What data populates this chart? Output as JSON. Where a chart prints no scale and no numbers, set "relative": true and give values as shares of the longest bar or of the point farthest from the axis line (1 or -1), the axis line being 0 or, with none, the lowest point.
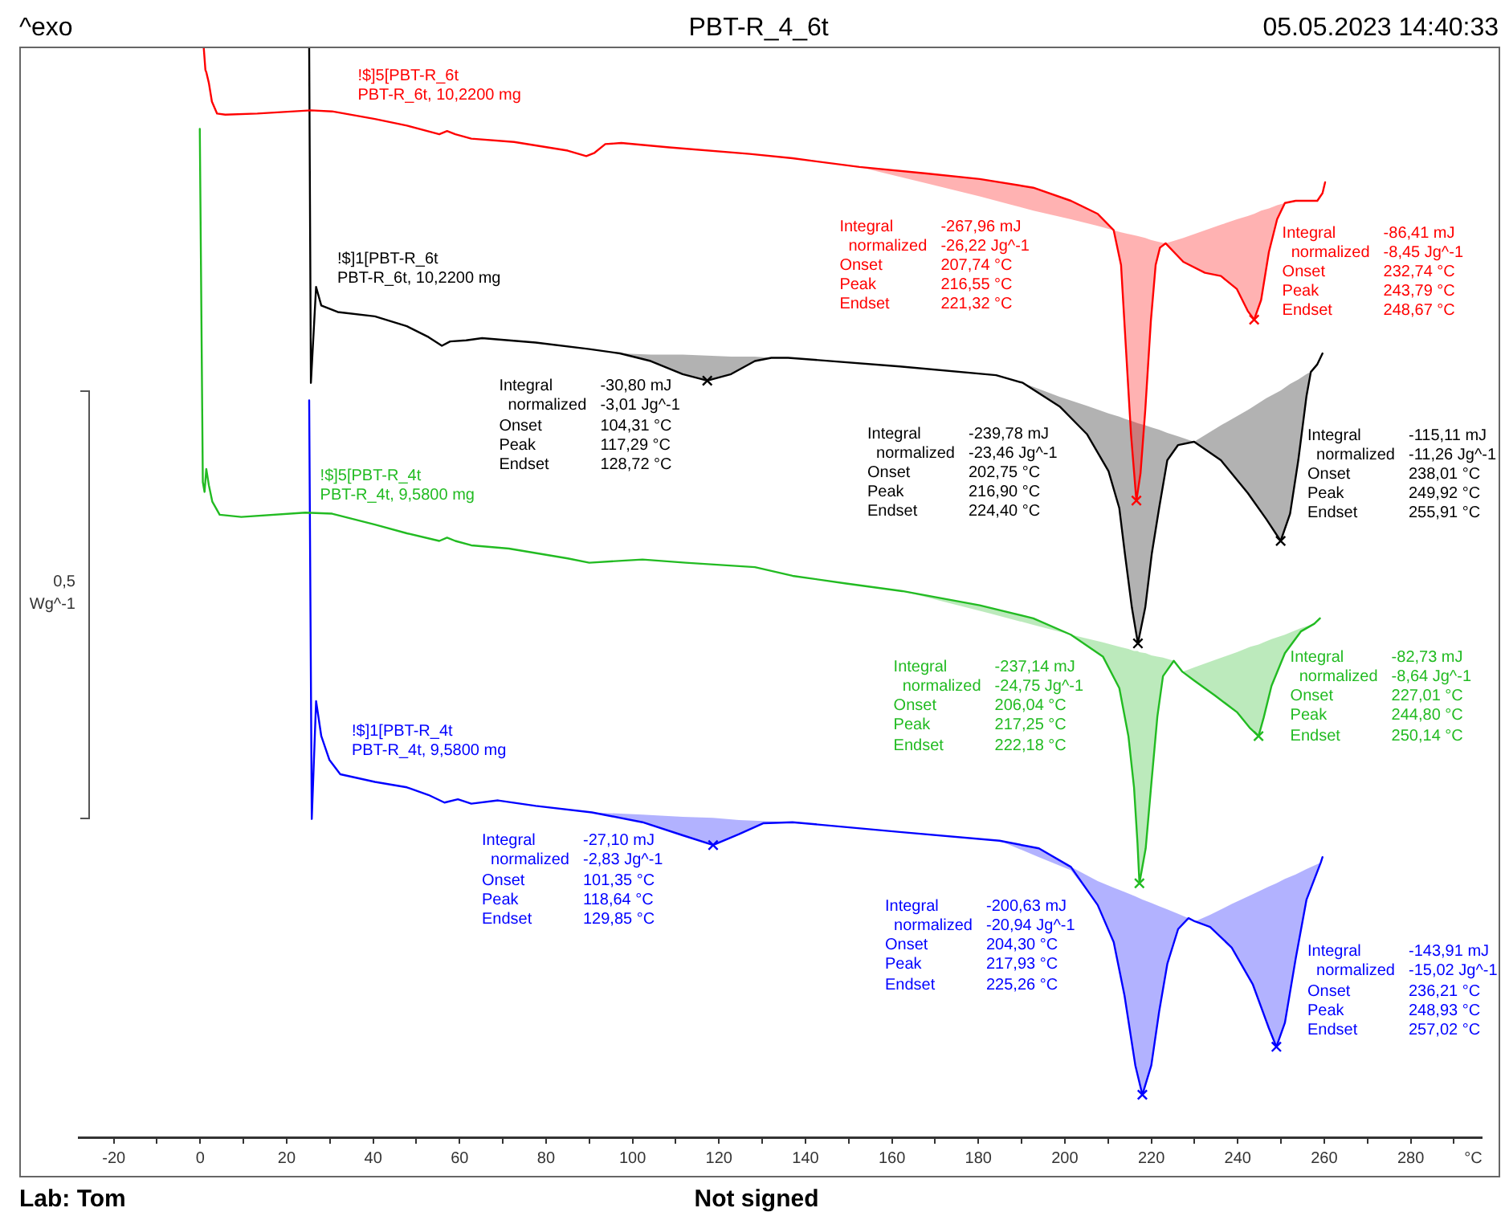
{
  "chart_data": {
    "type": "line",
    "title": "PBT-R_4_6t",
    "xlabel": "°C",
    "ylabel": "0,5\nWg^-1",
    "relative": true,
    "xlim": [
      -28,
      296.5
    ],
    "xticks": [
      -20,
      {
        "value": -10,
        "label": null
      },
      0,
      {
        "value": 10,
        "label": null
      },
      20,
      {
        "value": 30,
        "label": null
      },
      40,
      {
        "value": 50,
        "label": null
      },
      60,
      {
        "value": 70,
        "label": null
      },
      80,
      {
        "value": 90,
        "label": null
      },
      100,
      {
        "value": 110,
        "label": null
      },
      120,
      {
        "value": 130,
        "label": null
      },
      140,
      {
        "value": 150,
        "label": null
      },
      160,
      {
        "value": 170,
        "label": null
      },
      180,
      {
        "value": 190,
        "label": null
      },
      200,
      {
        "value": 210,
        "label": null
      },
      220,
      {
        "value": 230,
        "label": null
      },
      240,
      {
        "value": 250,
        "label": null
      },
      260,
      {
        "value": 270,
        "label": null
      },
      280,
      {
        "value": 290,
        "label": null
      }
    ],
    "annotations": [
      "^exo",
      "05.05.2023 14:40:33",
      "Lab: Tom",
      "Not signed",
      "Integral\t-30,80 mJ\n  normalized\t-3,01 Jg^-1\nOnset\t104,31 °C\nPeak\t117,29 °C\nEndset\t128,72 °C",
      "Integral\t-267,96 mJ\n  normalized\t-26,22 Jg^-1\nOnset\t207,74 °C\nPeak\t216,55 °C\nEndset\t221,32 °C",
      "Integral\t-86,41 mJ\n  normalized\t-8,45 Jg^-1\nOnset\t232,74 °C\nPeak\t243,79 °C\nEndset\t248,67 °C",
      "Integral\t-239,78 mJ\n  normalized\t-23,46 Jg^-1\nOnset\t202,75 °C\nPeak\t216,90 °C\nEndset\t224,40 °C",
      "Integral\t-115,11 mJ\n  normalized\t-11,26 Jg^-1\nOnset\t238,01 °C\nPeak\t249,92 °C\nEndset\t255,91 °C",
      "Integral\t-237,14 mJ\n  normalized\t-24,75 Jg^-1\nOnset\t206,04 °C\nPeak\t217,25 °C\nEndset\t222,18 °C",
      "Integral\t-82,73 mJ\n  normalized\t-8,64 Jg^-1\nOnset\t227,01 °C\nPeak\t244,80 °C\nEndset\t250,14 °C",
      "Integral\t-27,10 mJ\n  normalized\t-2,83 Jg^-1\nOnset\t101,35 °C\nPeak\t118,64 °C\nEndset\t129,85 °C",
      "Integral\t-200,63 mJ\n  normalized\t-20,94 Jg^-1\nOnset\t204,30 °C\nPeak\t217,93 °C\nEndset\t225,26 °C",
      "Integral\t-143,91 mJ\n  normalized\t-15,02 Jg^-1\nOnset\t236,21 °C\nPeak\t248,93 °C\nEndset\t257,02 °C"
    ],
    "series": [
      {
        "name": "!$]5[PBT-R_6t\nPBT-R_6t, 10,2200 mg",
        "color": "#ff0000",
        "x": [
          0.8,
          1.2,
          1.4,
          2.0,
          2.7,
          3.9,
          5.8,
          13.2,
          25.6,
          30.5,
          40.4,
          47.8,
          55.3,
          57.1,
          59.0,
          62.7,
          72.6,
          85.0,
          89.3,
          91.2,
          93.7,
          97.4,
          108.5,
          127.1,
          137.0,
          152.5,
          168.0,
          180.3,
          192.7,
          201.4,
          207.6,
          211.3,
          213.0,
          214.2,
          215.3,
          216.55,
          217.5,
          218.6,
          219.9,
          221.0,
          222.0,
          223.3,
          227.4,
          232.4,
          236.1,
          239.8,
          242.3,
          243.79,
          245.4,
          247.2,
          249.1,
          250.9,
          253.4,
          258.4,
          259.6,
          260.2
        ],
        "values": [
          1,
          0.979,
          0.977,
          0.967,
          0.95,
          0.939,
          0.938,
          0.939,
          0.942,
          0.941,
          0.934,
          0.928,
          0.92,
          0.923,
          0.92,
          0.916,
          0.913,
          0.905,
          0.9,
          0.903,
          0.911,
          0.912,
          0.908,
          0.902,
          0.898,
          0.89,
          0.884,
          0.879,
          0.871,
          0.859,
          0.847,
          0.832,
          0.8,
          0.719,
          0.645,
          0.584,
          0.609,
          0.667,
          0.749,
          0.8,
          0.816,
          0.82,
          0.803,
          0.793,
          0.79,
          0.778,
          0.758,
          0.75,
          0.768,
          0.812,
          0.842,
          0.857,
          0.859,
          0.859,
          0.866,
          0.876
        ],
        "lower": [
          null,
          null,
          null,
          null,
          null,
          null,
          null,
          null,
          null,
          null,
          null,
          null,
          null,
          null,
          null,
          null,
          null,
          null,
          null,
          null,
          null,
          null,
          null,
          null,
          null,
          0.89,
          0.875,
          0.863,
          0.85,
          0.842,
          0.836,
          0.832,
          0.8,
          0.719,
          0.645,
          0.584,
          0.609,
          0.667,
          0.749,
          0.8,
          0.816,
          0.82,
          0.803,
          0.793,
          0.79,
          0.778,
          0.758,
          0.75,
          0.768,
          0.812,
          0.842,
          0.857,
          null,
          null,
          null,
          null
        ],
        "upper": [
          null,
          null,
          null,
          null,
          null,
          null,
          null,
          null,
          null,
          null,
          null,
          null,
          null,
          null,
          null,
          null,
          null,
          null,
          null,
          null,
          null,
          null,
          null,
          null,
          null,
          0.89,
          0.884,
          0.879,
          0.871,
          0.859,
          0.847,
          0.832,
          0.83,
          0.829,
          0.828,
          0.827,
          0.826,
          0.825,
          0.823,
          0.822,
          0.821,
          0.82,
          0.825,
          0.832,
          0.837,
          0.842,
          0.845,
          0.847,
          0.85,
          0.852,
          0.855,
          0.857,
          null,
          null,
          null,
          null
        ]
      },
      {
        "type": "scatter",
        "marker": "cross",
        "color": "#ff0000",
        "x": [
          216.55,
          243.79
        ],
        "values": [
          0.584,
          0.75
        ]
      },
      {
        "name": "!$]1[PBT-R_6t\nPBT-R_6t, 10,2200 mg",
        "color": "#000000",
        "x": [
          25.2,
          25.6,
          26.8,
          28.0,
          31.8,
          40.4,
          47.8,
          52.8,
          55.9,
          57.8,
          61.5,
          65.2,
          77.6,
          90.0,
          97.1,
          104.2,
          111.6,
          117.29,
          122.8,
          128.3,
          132.1,
          136.0,
          161.8,
          184.1,
          190.3,
          198.9,
          205.1,
          210.1,
          212.6,
          213.9,
          215.5,
          216.9,
          218.6,
          220.1,
          221.8,
          223.7,
          226.2,
          229.9,
          236.1,
          242.3,
          246.6,
          249.92,
          252.1,
          254.0,
          255.9,
          256.9,
          258.4,
          259.6
        ],
        "values": [
          1,
          0.692,
          0.78,
          0.763,
          0.757,
          0.753,
          0.744,
          0.734,
          0.726,
          0.73,
          0.731,
          0.733,
          0.729,
          0.723,
          0.719,
          0.712,
          0.7,
          0.694,
          0.7,
          0.712,
          0.715,
          0.715,
          0.707,
          0.699,
          0.692,
          0.67,
          0.645,
          0.611,
          0.577,
          0.535,
          0.486,
          0.453,
          0.486,
          0.535,
          0.577,
          0.621,
          0.635,
          0.638,
          0.621,
          0.591,
          0.567,
          0.547,
          0.572,
          0.621,
          0.68,
          0.702,
          0.709,
          0.719
        ],
        "lower": [
          null,
          null,
          null,
          null,
          null,
          null,
          null,
          null,
          null,
          null,
          null,
          null,
          null,
          null,
          0.719,
          0.712,
          0.7,
          0.694,
          0.7,
          0.712,
          0.715,
          0.715,
          null,
          0.699,
          0.691,
          0.67,
          0.645,
          0.611,
          0.577,
          0.535,
          0.486,
          0.453,
          0.486,
          0.535,
          0.577,
          0.621,
          0.635,
          0.638,
          0.621,
          0.591,
          0.567,
          0.547,
          0.572,
          0.621,
          0.68,
          0.702,
          null,
          null
        ],
        "upper": [
          null,
          null,
          null,
          null,
          null,
          null,
          null,
          null,
          null,
          null,
          null,
          null,
          null,
          null,
          0.719,
          0.718,
          0.718,
          0.717,
          0.716,
          0.716,
          0.715,
          0.715,
          null,
          0.699,
          0.692,
          0.679,
          0.671,
          0.664,
          0.661,
          0.659,
          0.657,
          0.655,
          0.653,
          0.651,
          0.649,
          0.646,
          0.643,
          0.638,
          0.653,
          0.667,
          0.678,
          0.685,
          0.691,
          0.695,
          0.7,
          0.702,
          null,
          null
        ]
      },
      {
        "type": "scatter",
        "marker": "cross",
        "color": "#000000",
        "x": [
          117.29,
          216.9,
          249.92
        ],
        "values": [
          0.694,
          0.453,
          0.547
        ]
      },
      {
        "name": "!$]5[PBT-R_4t\nPBT-R_4t, 9,5800 mg",
        "color": "#22bb22",
        "x": [
          -0.1,
          0.6,
          1.0,
          1.4,
          2.0,
          2.8,
          4.5,
          9.5,
          24.3,
          30.5,
          40.4,
          47.8,
          55.3,
          57.1,
          59.0,
          62.7,
          71.4,
          85.0,
          90.0,
          102.3,
          112.3,
          128.3,
          137.0,
          149.4,
          162.4,
          180.3,
          192.7,
          201.4,
          208.8,
          212.6,
          214.7,
          216.0,
          216.8,
          217.25,
          218.7,
          220.0,
          221.4,
          222.7,
          225.2,
          227.2,
          229.9,
          234.8,
          239.8,
          242.9,
          244.8,
          246.0,
          247.8,
          250.9,
          254.6,
          257.7,
          259.0
        ],
        "values": [
          0.925,
          0.601,
          0.592,
          0.613,
          0.598,
          0.583,
          0.571,
          0.569,
          0.573,
          0.572,
          0.562,
          0.554,
          0.547,
          0.55,
          0.547,
          0.543,
          0.54,
          0.531,
          0.527,
          0.53,
          0.527,
          0.523,
          0.515,
          0.508,
          0.501,
          0.488,
          0.476,
          0.461,
          0.441,
          0.412,
          0.368,
          0.321,
          0.27,
          0.233,
          0.265,
          0.324,
          0.386,
          0.423,
          0.437,
          0.427,
          0.419,
          0.405,
          0.39,
          0.375,
          0.368,
          0.385,
          0.414,
          0.444,
          0.464,
          0.471,
          0.476
        ],
        "lower": [
          null,
          null,
          null,
          null,
          null,
          null,
          null,
          null,
          null,
          null,
          null,
          null,
          null,
          null,
          null,
          null,
          null,
          null,
          null,
          null,
          null,
          null,
          null,
          null,
          0.501,
          0.483,
          0.47,
          0.461,
          0.441,
          0.412,
          0.368,
          0.321,
          0.27,
          0.233,
          0.265,
          0.324,
          0.386,
          0.423,
          0.437,
          0.427,
          0.419,
          0.405,
          0.39,
          0.375,
          0.368,
          0.385,
          0.414,
          0.444,
          0.464,
          0.471,
          null
        ],
        "upper": [
          null,
          null,
          null,
          null,
          null,
          null,
          null,
          null,
          null,
          null,
          null,
          null,
          null,
          null,
          null,
          null,
          null,
          null,
          null,
          null,
          null,
          null,
          null,
          null,
          0.501,
          0.488,
          0.476,
          0.461,
          0.454,
          0.45,
          0.448,
          0.446,
          0.446,
          0.445,
          0.444,
          0.442,
          0.441,
          0.44,
          0.437,
          0.427,
          0.431,
          0.438,
          0.445,
          0.45,
          0.452,
          0.454,
          0.457,
          0.461,
          0.467,
          0.471,
          null
        ]
      },
      {
        "type": "scatter",
        "marker": "cross",
        "color": "#22bb22",
        "x": [
          217.25,
          244.8
        ],
        "values": [
          0.233,
          0.368
        ]
      },
      {
        "name": "!$]1[PBT-R_4t\nPBT-R_4t, 9,5800 mg",
        "color": "#0000ff",
        "x": [
          25.2,
          25.8,
          26.8,
          28.0,
          29.9,
          32.4,
          40.4,
          47.8,
          52.8,
          56.5,
          59.6,
          62.7,
          68.9,
          77.6,
          90.6,
          102.3,
          111.6,
          118.64,
          124.6,
          130.2,
          137.0,
          161.8,
          184.9,
          194.0,
          201.4,
          207.6,
          211.3,
          213.8,
          216.3,
          217.93,
          220.0,
          221.8,
          223.7,
          226.2,
          228.6,
          230.1,
          233.6,
          238.6,
          243.5,
          247.2,
          248.93,
          250.9,
          253.4,
          255.9,
          259.2,
          259.6
        ],
        "values": [
          0.676,
          0.292,
          0.4,
          0.368,
          0.346,
          0.333,
          0.326,
          0.321,
          0.314,
          0.307,
          0.31,
          0.306,
          0.309,
          0.304,
          0.298,
          0.289,
          0.277,
          0.268,
          0.278,
          0.288,
          0.289,
          0.28,
          0.272,
          0.265,
          0.248,
          0.213,
          0.179,
          0.13,
          0.066,
          0.039,
          0.066,
          0.115,
          0.159,
          0.191,
          0.201,
          0.198,
          0.193,
          0.174,
          0.14,
          0.1,
          0.083,
          0.105,
          0.164,
          0.218,
          0.252,
          0.257
        ],
        "lower": [
          null,
          null,
          null,
          null,
          null,
          null,
          null,
          null,
          null,
          null,
          null,
          null,
          null,
          null,
          0.298,
          0.289,
          0.277,
          0.268,
          0.278,
          0.288,
          0.289,
          null,
          0.272,
          0.257,
          0.245,
          0.213,
          0.179,
          0.13,
          0.066,
          0.039,
          0.066,
          0.115,
          0.159,
          0.191,
          0.201,
          0.198,
          0.193,
          0.174,
          0.14,
          0.1,
          0.083,
          0.105,
          0.164,
          0.218,
          0.252,
          null
        ],
        "upper": [
          null,
          null,
          null,
          null,
          null,
          null,
          null,
          null,
          null,
          null,
          null,
          null,
          null,
          null,
          0.298,
          0.296,
          0.294,
          0.293,
          0.291,
          0.29,
          0.289,
          null,
          0.272,
          0.265,
          0.248,
          0.235,
          0.229,
          0.225,
          0.221,
          0.218,
          0.215,
          0.212,
          0.209,
          0.205,
          0.201,
          0.198,
          0.204,
          0.214,
          0.223,
          0.23,
          0.233,
          0.237,
          0.241,
          0.246,
          0.252,
          null
        ]
      },
      {
        "type": "scatter",
        "marker": "cross",
        "color": "#0000ff",
        "x": [
          118.64,
          217.93,
          248.93
        ],
        "values": [
          0.268,
          0.039,
          0.083
        ]
      }
    ]
  }
}
